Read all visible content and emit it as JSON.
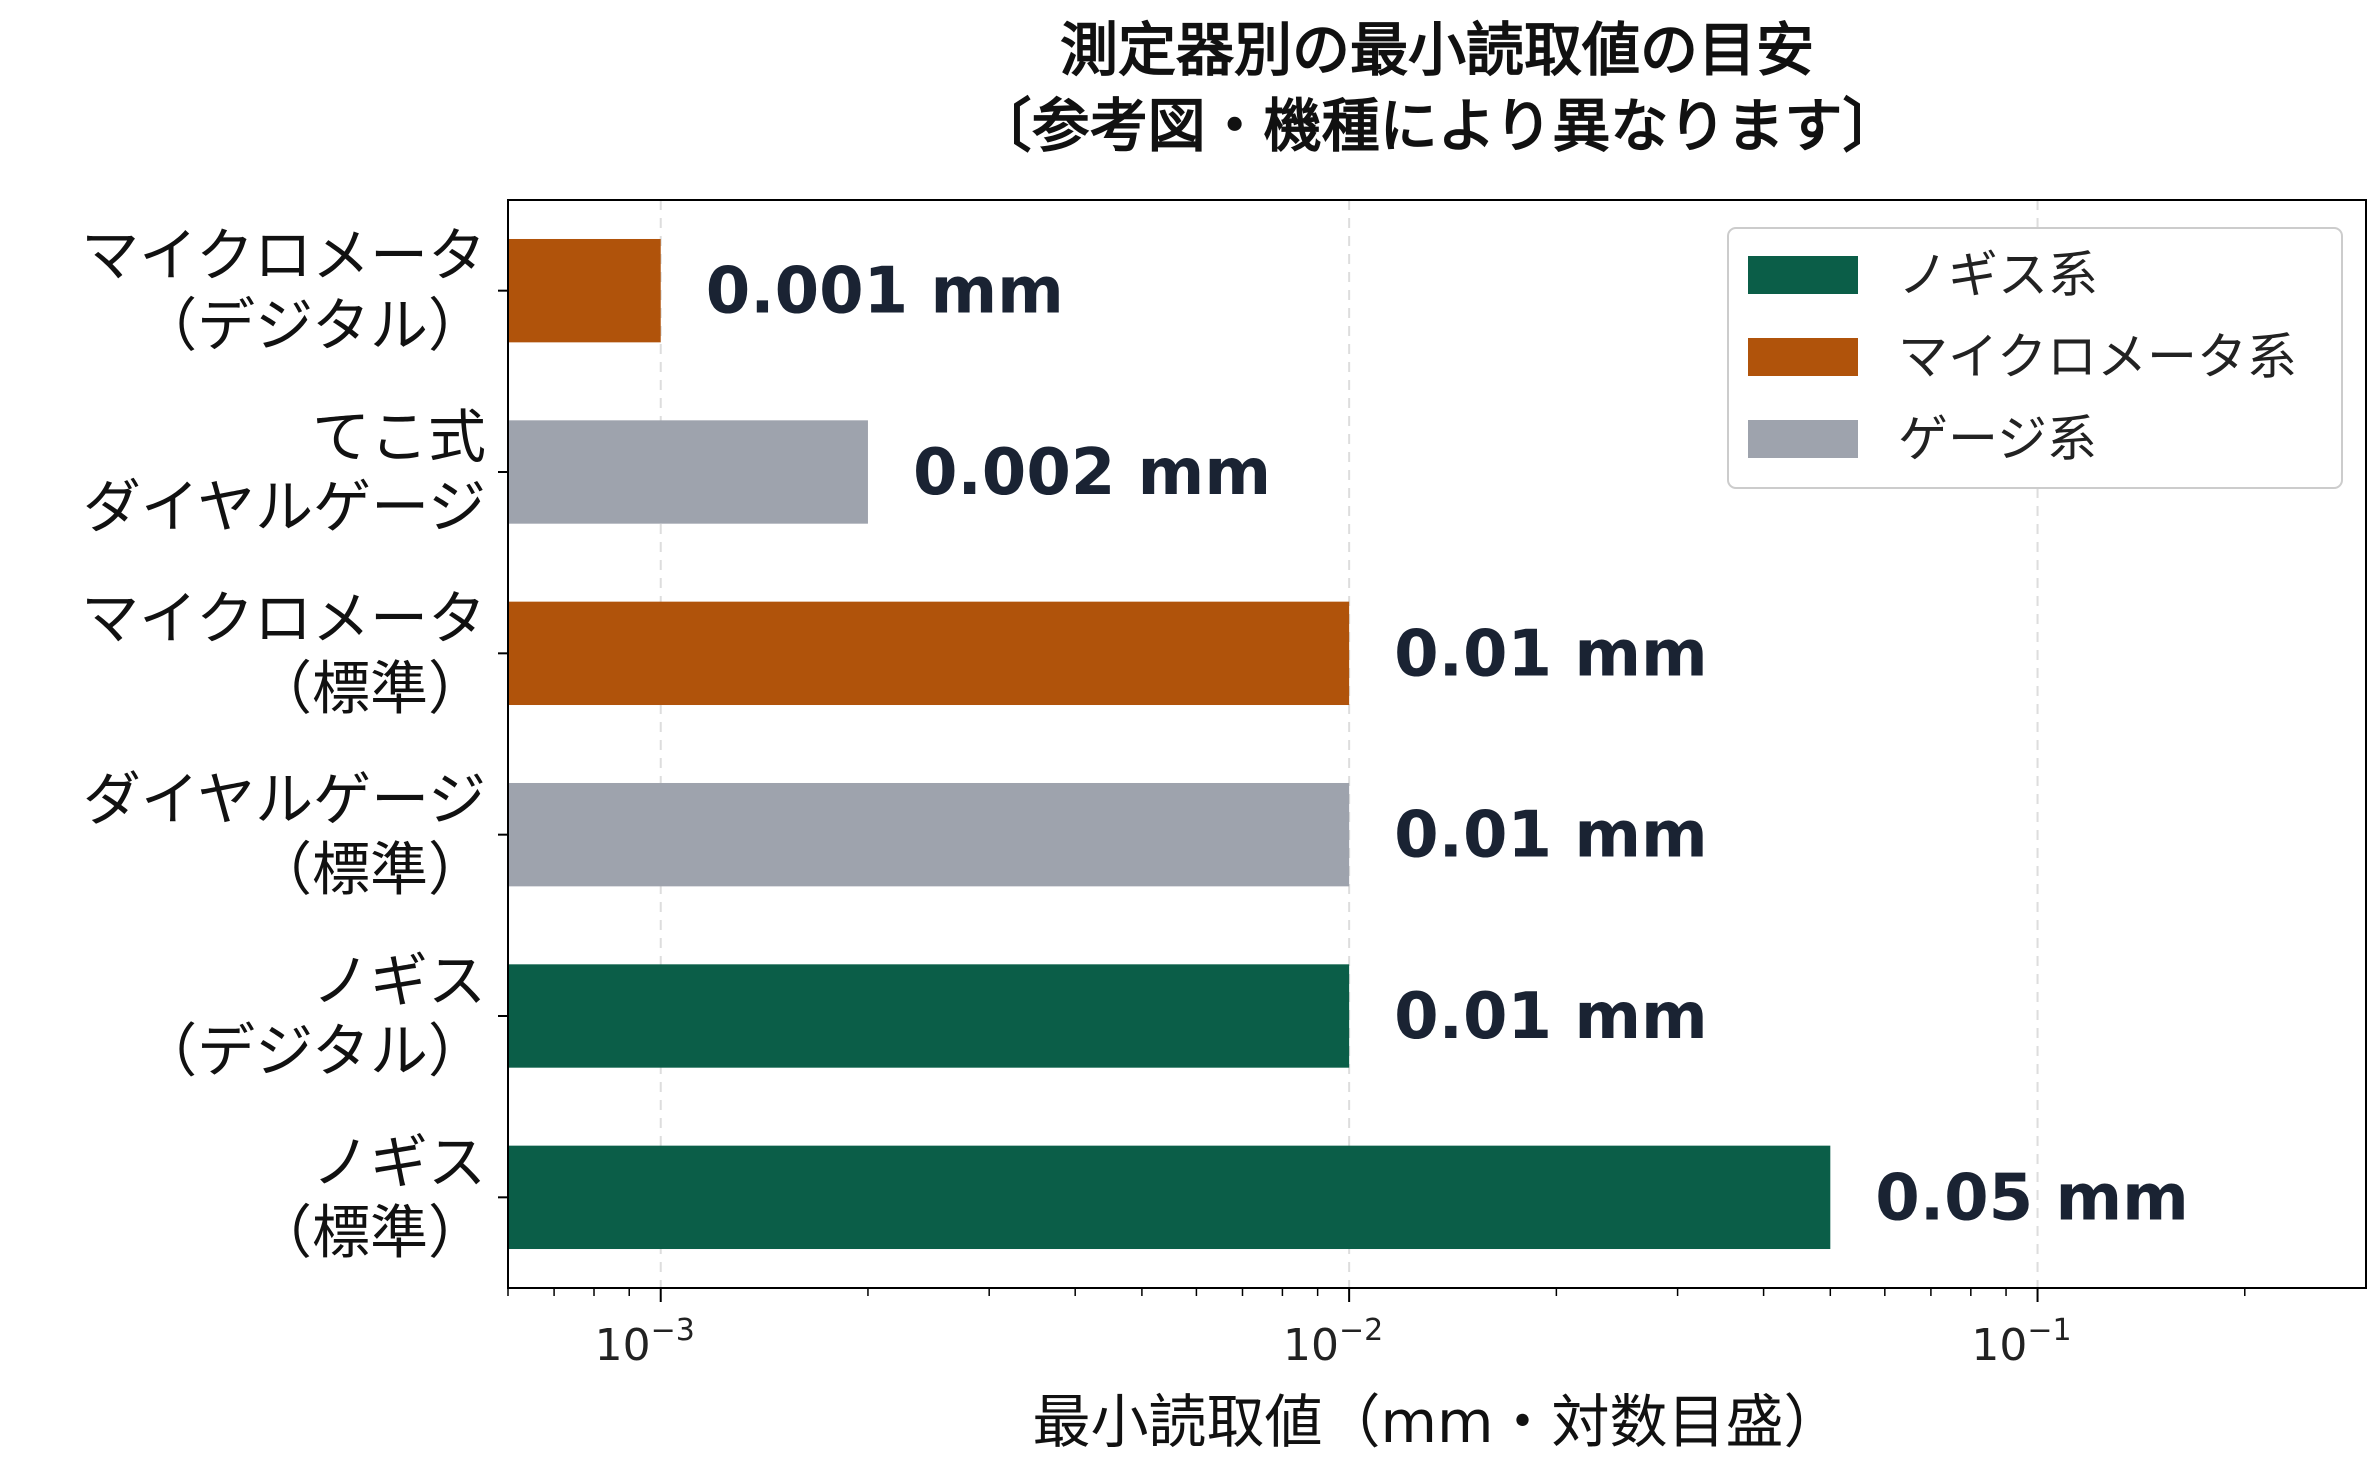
{
  "chart_data": {
    "type": "bar",
    "orientation": "horizontal",
    "title_lines": [
      "測定器別の最小読取値の目安",
      "〔参考図・機種により異なります〕"
    ],
    "xlabel": "最小読取値（mm・対数目盛）",
    "xscale": "log",
    "xlim": [
      0.0006,
      0.3
    ],
    "x_tick_labels": [
      {
        "value": 0.001,
        "base": "10",
        "exponent": "−3"
      },
      {
        "value": 0.01,
        "base": "10",
        "exponent": "−2"
      },
      {
        "value": 0.1,
        "base": "10",
        "exponent": "−1"
      }
    ],
    "grid": "vertical dashed at major ticks",
    "legend_position": "top-right",
    "legend": [
      {
        "label": "ノギス系",
        "color": "#0b5e48"
      },
      {
        "label": "マイクロメータ系",
        "color": "#b0530b"
      },
      {
        "label": "ゲージ系",
        "color": "#9ea3ad"
      }
    ],
    "bars": [
      {
        "label_lines": [
          "マイクロメータ",
          "（デジタル）"
        ],
        "value": 0.001,
        "value_label": "0.001 mm",
        "color": "#b0530b"
      },
      {
        "label_lines": [
          "てこ式",
          "ダイヤルゲージ"
        ],
        "value": 0.002,
        "value_label": "0.002 mm",
        "color": "#9ea3ad"
      },
      {
        "label_lines": [
          "マイクロメータ",
          "（標準）"
        ],
        "value": 0.01,
        "value_label": "0.01 mm",
        "color": "#b0530b"
      },
      {
        "label_lines": [
          "ダイヤルゲージ",
          "（標準）"
        ],
        "value": 0.01,
        "value_label": "0.01 mm",
        "color": "#9ea3ad"
      },
      {
        "label_lines": [
          "ノギス",
          "（デジタル）"
        ],
        "value": 0.01,
        "value_label": "0.01 mm",
        "color": "#0b5e48"
      },
      {
        "label_lines": [
          "ノギス",
          "（標準）"
        ],
        "value": 0.05,
        "value_label": "0.05 mm",
        "color": "#0b5e48"
      }
    ]
  }
}
